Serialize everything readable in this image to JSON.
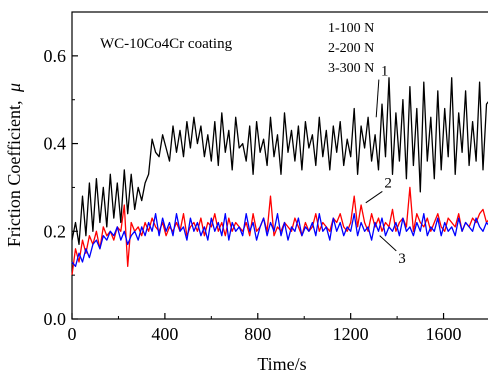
{
  "chart_data": {
    "type": "line",
    "title": "",
    "annotation": "WC-10Co4Cr coating",
    "xlabel": "Time/s",
    "ylabel_main": "Friction Coefficient,",
    "ylabel_symbol": "μ",
    "xlim": [
      0,
      1800
    ],
    "ylim": [
      0.0,
      0.7
    ],
    "x_ticks": [
      0,
      400,
      800,
      1200,
      1600
    ],
    "x_tick_labels": [
      "0",
      "400",
      "800",
      "1200",
      "1600"
    ],
    "y_ticks": [
      0.0,
      0.2,
      0.4,
      0.6
    ],
    "y_tick_labels": [
      "0.0",
      "0.2",
      "0.4",
      "0.6"
    ],
    "legend_position": "top-right",
    "legend": [
      "1-100 N",
      "2-200 N",
      "3-300 N"
    ],
    "grid": false,
    "series": [
      {
        "name": "1-100 N",
        "label": "1",
        "color": "#000000",
        "x": [
          0,
          15,
          30,
          45,
          60,
          75,
          90,
          105,
          120,
          135,
          150,
          165,
          180,
          195,
          210,
          225,
          240,
          255,
          270,
          285,
          300,
          315,
          330,
          345,
          360,
          375,
          390,
          405,
          420,
          435,
          450,
          465,
          480,
          495,
          510,
          525,
          540,
          555,
          570,
          585,
          600,
          615,
          630,
          645,
          660,
          675,
          690,
          705,
          720,
          735,
          750,
          765,
          780,
          795,
          810,
          825,
          840,
          855,
          870,
          885,
          900,
          915,
          930,
          945,
          960,
          975,
          990,
          1005,
          1020,
          1035,
          1050,
          1065,
          1080,
          1095,
          1110,
          1125,
          1140,
          1155,
          1170,
          1185,
          1200,
          1215,
          1230,
          1245,
          1260,
          1275,
          1290,
          1305,
          1320,
          1335,
          1350,
          1365,
          1380,
          1395,
          1410,
          1425,
          1440,
          1455,
          1470,
          1485,
          1500,
          1515,
          1530,
          1545,
          1560,
          1575,
          1590,
          1605,
          1620,
          1635,
          1650,
          1665,
          1680,
          1695,
          1710,
          1725,
          1740,
          1755,
          1770,
          1785,
          1800
        ],
        "y": [
          0.18,
          0.22,
          0.17,
          0.28,
          0.19,
          0.31,
          0.2,
          0.32,
          0.22,
          0.3,
          0.21,
          0.33,
          0.23,
          0.31,
          0.22,
          0.34,
          0.24,
          0.33,
          0.25,
          0.3,
          0.27,
          0.31,
          0.33,
          0.41,
          0.38,
          0.37,
          0.42,
          0.39,
          0.36,
          0.44,
          0.38,
          0.43,
          0.37,
          0.45,
          0.39,
          0.46,
          0.4,
          0.44,
          0.37,
          0.42,
          0.36,
          0.45,
          0.35,
          0.47,
          0.38,
          0.43,
          0.34,
          0.46,
          0.39,
          0.4,
          0.36,
          0.44,
          0.33,
          0.45,
          0.38,
          0.41,
          0.35,
          0.46,
          0.37,
          0.42,
          0.33,
          0.47,
          0.38,
          0.43,
          0.36,
          0.44,
          0.34,
          0.45,
          0.39,
          0.42,
          0.35,
          0.46,
          0.37,
          0.43,
          0.34,
          0.44,
          0.38,
          0.45,
          0.35,
          0.41,
          0.37,
          0.48,
          0.33,
          0.44,
          0.39,
          0.46,
          0.36,
          0.42,
          0.34,
          0.49,
          0.37,
          0.55,
          0.33,
          0.47,
          0.36,
          0.5,
          0.32,
          0.53,
          0.35,
          0.48,
          0.29,
          0.54,
          0.36,
          0.46,
          0.32,
          0.52,
          0.34,
          0.48,
          0.37,
          0.55,
          0.33,
          0.47,
          0.38,
          0.52,
          0.35,
          0.45,
          0.36,
          0.54,
          0.34,
          0.49,
          0.5
        ]
      },
      {
        "name": "2-200 N",
        "label": "2",
        "color": "#ff0000",
        "x": [
          0,
          15,
          30,
          45,
          60,
          75,
          90,
          105,
          120,
          135,
          150,
          165,
          180,
          195,
          210,
          225,
          240,
          255,
          270,
          285,
          300,
          315,
          330,
          345,
          360,
          375,
          390,
          405,
          420,
          435,
          450,
          465,
          480,
          495,
          510,
          525,
          540,
          555,
          570,
          585,
          600,
          615,
          630,
          645,
          660,
          675,
          690,
          705,
          720,
          735,
          750,
          765,
          780,
          795,
          810,
          825,
          840,
          855,
          870,
          885,
          900,
          915,
          930,
          945,
          960,
          975,
          990,
          1005,
          1020,
          1035,
          1050,
          1065,
          1080,
          1095,
          1110,
          1125,
          1140,
          1155,
          1170,
          1185,
          1200,
          1215,
          1230,
          1245,
          1260,
          1275,
          1290,
          1305,
          1320,
          1335,
          1350,
          1365,
          1380,
          1395,
          1410,
          1425,
          1440,
          1455,
          1470,
          1485,
          1500,
          1515,
          1530,
          1545,
          1560,
          1575,
          1590,
          1605,
          1620,
          1635,
          1650,
          1665,
          1680,
          1695,
          1710,
          1725,
          1740,
          1755,
          1770,
          1785,
          1800
        ],
        "y": [
          0.1,
          0.16,
          0.13,
          0.18,
          0.15,
          0.19,
          0.17,
          0.2,
          0.16,
          0.21,
          0.19,
          0.2,
          0.18,
          0.21,
          0.2,
          0.26,
          0.12,
          0.22,
          0.2,
          0.21,
          0.19,
          0.22,
          0.2,
          0.23,
          0.21,
          0.2,
          0.22,
          0.19,
          0.21,
          0.2,
          0.22,
          0.2,
          0.24,
          0.19,
          0.21,
          0.22,
          0.2,
          0.23,
          0.19,
          0.22,
          0.21,
          0.24,
          0.2,
          0.22,
          0.19,
          0.23,
          0.2,
          0.22,
          0.21,
          0.2,
          0.22,
          0.19,
          0.24,
          0.2,
          0.21,
          0.23,
          0.2,
          0.28,
          0.19,
          0.21,
          0.2,
          0.22,
          0.21,
          0.2,
          0.23,
          0.21,
          0.19,
          0.22,
          0.2,
          0.21,
          0.24,
          0.2,
          0.22,
          0.21,
          0.2,
          0.23,
          0.22,
          0.24,
          0.21,
          0.2,
          0.22,
          0.28,
          0.21,
          0.26,
          0.22,
          0.2,
          0.24,
          0.21,
          0.23,
          0.2,
          0.22,
          0.21,
          0.25,
          0.2,
          0.22,
          0.23,
          0.21,
          0.3,
          0.2,
          0.24,
          0.22,
          0.21,
          0.23,
          0.2,
          0.22,
          0.24,
          0.21,
          0.2,
          0.23,
          0.22,
          0.21,
          0.24,
          0.2,
          0.22,
          0.21,
          0.23,
          0.22,
          0.24,
          0.25,
          0.22,
          0.23
        ]
      },
      {
        "name": "3-300 N",
        "label": "3",
        "color": "#0000ff",
        "x": [
          0,
          15,
          30,
          45,
          60,
          75,
          90,
          105,
          120,
          135,
          150,
          165,
          180,
          195,
          210,
          225,
          240,
          255,
          270,
          285,
          300,
          315,
          330,
          345,
          360,
          375,
          390,
          405,
          420,
          435,
          450,
          465,
          480,
          495,
          510,
          525,
          540,
          555,
          570,
          585,
          600,
          615,
          630,
          645,
          660,
          675,
          690,
          705,
          720,
          735,
          750,
          765,
          780,
          795,
          810,
          825,
          840,
          855,
          870,
          885,
          900,
          915,
          930,
          945,
          960,
          975,
          990,
          1005,
          1020,
          1035,
          1050,
          1065,
          1080,
          1095,
          1110,
          1125,
          1140,
          1155,
          1170,
          1185,
          1200,
          1215,
          1230,
          1245,
          1260,
          1275,
          1290,
          1305,
          1320,
          1335,
          1350,
          1365,
          1380,
          1395,
          1410,
          1425,
          1440,
          1455,
          1470,
          1485,
          1500,
          1515,
          1530,
          1545,
          1560,
          1575,
          1590,
          1605,
          1620,
          1635,
          1650,
          1665,
          1680,
          1695,
          1710,
          1725,
          1740,
          1755,
          1770,
          1785,
          1800
        ],
        "y": [
          0.13,
          0.12,
          0.15,
          0.13,
          0.16,
          0.14,
          0.17,
          0.18,
          0.16,
          0.19,
          0.18,
          0.2,
          0.19,
          0.21,
          0.18,
          0.2,
          0.17,
          0.19,
          0.2,
          0.18,
          0.21,
          0.19,
          0.22,
          0.2,
          0.24,
          0.19,
          0.23,
          0.2,
          0.22,
          0.19,
          0.24,
          0.2,
          0.21,
          0.18,
          0.23,
          0.2,
          0.22,
          0.19,
          0.21,
          0.18,
          0.23,
          0.2,
          0.22,
          0.19,
          0.24,
          0.18,
          0.22,
          0.2,
          0.21,
          0.19,
          0.24,
          0.2,
          0.22,
          0.18,
          0.21,
          0.23,
          0.19,
          0.22,
          0.2,
          0.24,
          0.19,
          0.22,
          0.18,
          0.21,
          0.2,
          0.23,
          0.19,
          0.21,
          0.2,
          0.22,
          0.19,
          0.24,
          0.2,
          0.21,
          0.18,
          0.23,
          0.2,
          0.22,
          0.19,
          0.21,
          0.2,
          0.24,
          0.19,
          0.22,
          0.2,
          0.21,
          0.18,
          0.22,
          0.2,
          0.23,
          0.19,
          0.21,
          0.2,
          0.22,
          0.19,
          0.23,
          0.2,
          0.21,
          0.19,
          0.22,
          0.2,
          0.24,
          0.19,
          0.21,
          0.2,
          0.23,
          0.19,
          0.22,
          0.2,
          0.21,
          0.19,
          0.23,
          0.2,
          0.22,
          0.21,
          0.2,
          0.23,
          0.21,
          0.2,
          0.22,
          0.21
        ]
      }
    ],
    "series_labels": [
      {
        "text": "1",
        "x": 1330,
        "y": 0.555,
        "leader_to": [
          1310,
          0.46
        ]
      },
      {
        "text": "2",
        "x": 1345,
        "y": 0.3,
        "leader_to": [
          1265,
          0.265
        ]
      },
      {
        "text": "3",
        "x": 1405,
        "y": 0.128,
        "leader_to": [
          1325,
          0.19
        ]
      }
    ]
  }
}
